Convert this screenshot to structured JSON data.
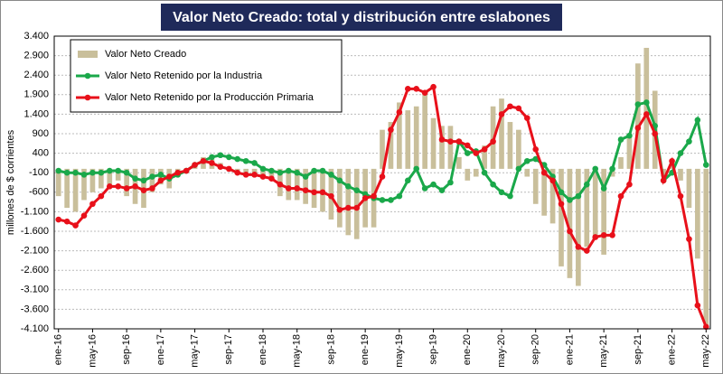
{
  "chart_data": {
    "type": "bar-line",
    "title": "Valor Neto Creado: total y distribución entre eslabones",
    "y_label": "millones de $ corrientes",
    "categories": [
      "ene-16",
      null,
      null,
      null,
      "may-16",
      null,
      null,
      null,
      "sep-16",
      null,
      null,
      null,
      "ene-17",
      null,
      null,
      null,
      "may-17",
      null,
      null,
      null,
      "sep-17",
      null,
      null,
      null,
      "ene-18",
      null,
      null,
      null,
      "may-18",
      null,
      null,
      null,
      "sep-18",
      null,
      null,
      null,
      "ene-19",
      null,
      null,
      null,
      "may-19",
      null,
      null,
      null,
      "sep-19",
      null,
      null,
      null,
      "ene-20",
      null,
      null,
      null,
      "may-20",
      null,
      null,
      null,
      "sep-20",
      null,
      null,
      null,
      "ene-21",
      null,
      null,
      null,
      "may-21",
      null,
      null,
      null,
      "sep-21",
      null,
      null,
      null,
      "ene-22",
      null,
      null,
      null,
      "may-22"
    ],
    "series": [
      {
        "name": "Valor Neto Creado",
        "kind": "bar",
        "color": "#c9bf9b",
        "values": [
          -700,
          -1000,
          -1100,
          -800,
          -600,
          -500,
          -400,
          -300,
          -700,
          -900,
          -1000,
          -600,
          -400,
          -500,
          -200,
          -100,
          150,
          300,
          250,
          150,
          0,
          -100,
          -150,
          -200,
          -200,
          -300,
          -700,
          -800,
          -800,
          -900,
          -1000,
          -1100,
          -1300,
          -1500,
          -1700,
          -1800,
          -1500,
          -1500,
          1000,
          1200,
          1700,
          1500,
          1600,
          2000,
          1300,
          1100,
          1100,
          300,
          -300,
          -200,
          600,
          1600,
          1800,
          1200,
          1000,
          -200,
          -900,
          -1200,
          -1400,
          -2500,
          -2800,
          -3000,
          -2000,
          -1800,
          -2200,
          -200,
          300,
          900,
          2700,
          3100,
          2000,
          -200,
          200,
          -300,
          -1000,
          -2300,
          -4100
        ]
      },
      {
        "name": "Valor Neto Retenido por la Industria",
        "kind": "line",
        "color": "#1aa84a",
        "values": [
          -50,
          -100,
          -100,
          -150,
          -100,
          -100,
          -50,
          -50,
          -100,
          -250,
          -300,
          -200,
          -150,
          -250,
          -150,
          -50,
          100,
          200,
          300,
          350,
          300,
          250,
          200,
          150,
          0,
          -50,
          -100,
          -50,
          -100,
          -200,
          -50,
          -50,
          -150,
          -300,
          -450,
          -550,
          -650,
          -750,
          -800,
          -800,
          -700,
          -300,
          0,
          -500,
          -400,
          -550,
          -350,
          700,
          400,
          450,
          -100,
          -400,
          -600,
          -700,
          0,
          200,
          250,
          100,
          -200,
          -600,
          -800,
          -700,
          -400,
          0,
          -500,
          0,
          750,
          850,
          1650,
          1700,
          1100,
          -300,
          -100,
          400,
          700,
          1250,
          100
        ]
      },
      {
        "name": "Valor Neto Retenido por la Producción Primaria",
        "kind": "line",
        "color": "#e8101a",
        "values": [
          -1300,
          -1350,
          -1450,
          -1200,
          -900,
          -700,
          -450,
          -450,
          -500,
          -450,
          -550,
          -500,
          -300,
          -200,
          -100,
          -50,
          100,
          200,
          150,
          50,
          0,
          -100,
          -150,
          -150,
          -200,
          -250,
          -400,
          -500,
          -500,
          -550,
          -600,
          -600,
          -700,
          -1050,
          -1000,
          -1000,
          -750,
          -700,
          -200,
          1000,
          1450,
          2050,
          2050,
          1950,
          2100,
          750,
          700,
          700,
          600,
          400,
          500,
          700,
          1400,
          1600,
          1550,
          1300,
          500,
          -100,
          -300,
          -900,
          -1600,
          -2000,
          -2100,
          -1750,
          -1700,
          -1700,
          -700,
          -400,
          1050,
          1400,
          900,
          -300,
          200,
          -700,
          -1800,
          -3500,
          -4050
        ]
      }
    ],
    "ylim": [
      -4100,
      3400
    ],
    "yticks": [
      {
        "value": -4100,
        "label": "-4.100"
      },
      {
        "value": -3600,
        "label": "-3.600"
      },
      {
        "value": -3100,
        "label": "-3.100"
      },
      {
        "value": -2600,
        "label": "-2.600"
      },
      {
        "value": -2100,
        "label": "-2.100"
      },
      {
        "value": -1600,
        "label": "-1.600"
      },
      {
        "value": -1100,
        "label": "-1.100"
      },
      -600,
      -100,
      400,
      900,
      {
        "value": 1400,
        "label": "1.400"
      },
      {
        "value": 1900,
        "label": "1.900"
      },
      {
        "value": 2400,
        "label": "2.400"
      },
      {
        "value": 2900,
        "label": "2.900"
      },
      {
        "value": 3400,
        "label": "3.400"
      }
    ],
    "grid": true
  }
}
